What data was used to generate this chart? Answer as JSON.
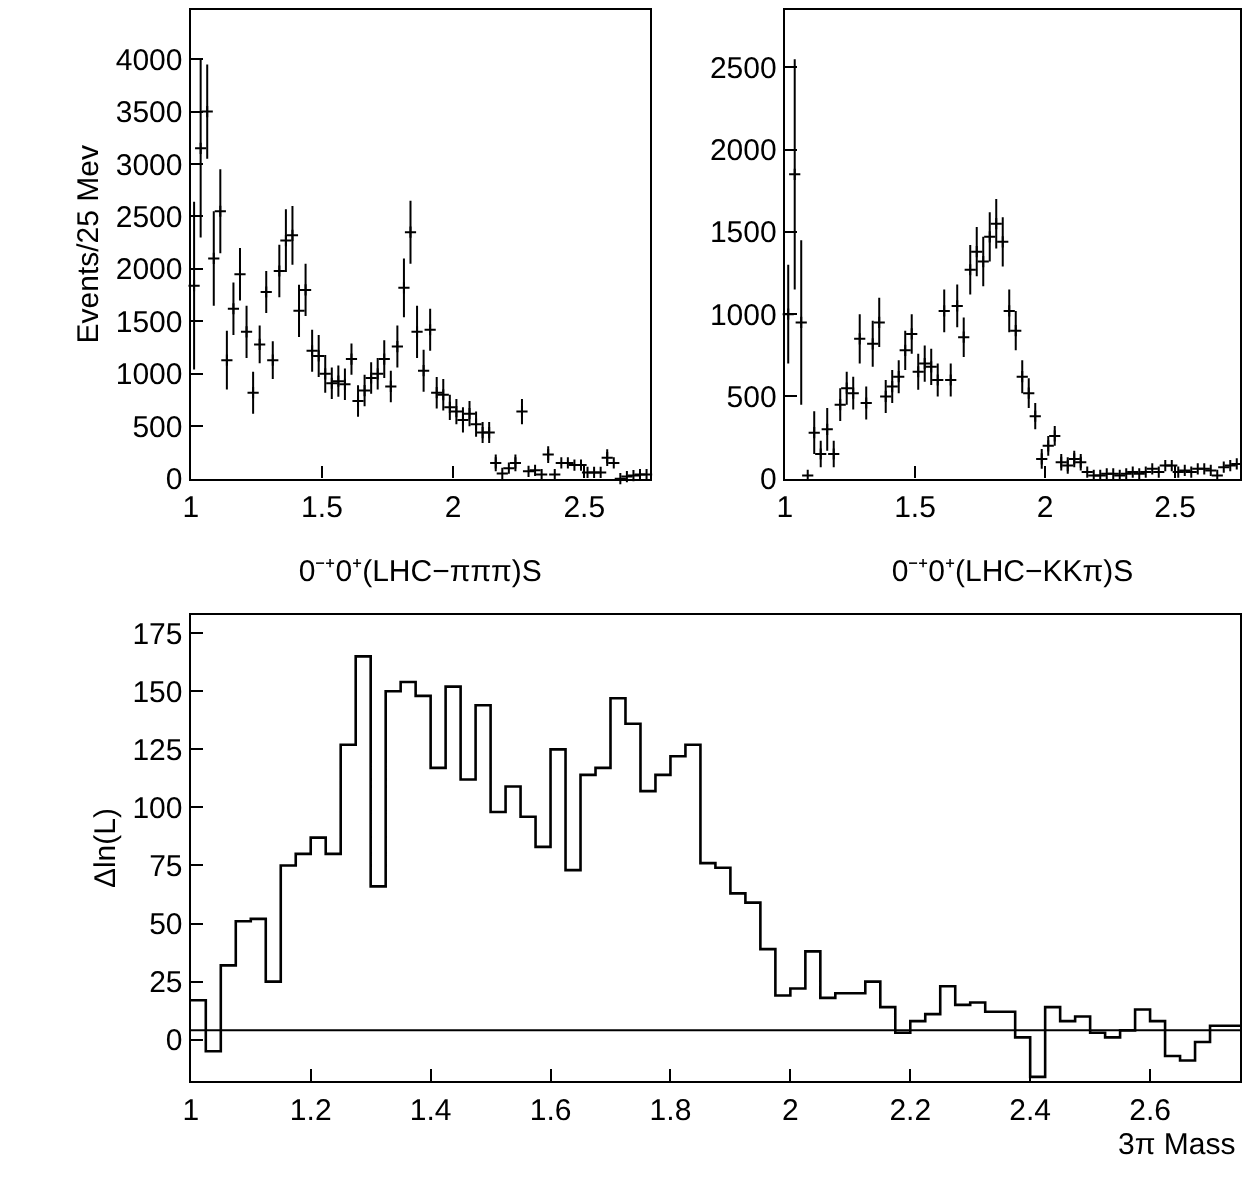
{
  "chart_data": [
    {
      "type": "scatter",
      "ylabel": "Events/25 Mev",
      "xlabel": "0⁻⁺0⁺(LHC−πππ)S",
      "marker": "cross",
      "x": [
        1.0125,
        1.0375,
        1.0625,
        1.0875,
        1.1125,
        1.1375,
        1.1625,
        1.1875,
        1.2125,
        1.2375,
        1.2625,
        1.2875,
        1.3125,
        1.3375,
        1.3625,
        1.3875,
        1.4125,
        1.4375,
        1.4625,
        1.4875,
        1.5125,
        1.5375,
        1.5625,
        1.5875,
        1.6125,
        1.6375,
        1.6625,
        1.6875,
        1.7125,
        1.7375,
        1.7625,
        1.7875,
        1.8125,
        1.8375,
        1.8625,
        1.8875,
        1.9125,
        1.9375,
        1.9625,
        1.9875,
        2.0125,
        2.0375,
        2.0625,
        2.0875,
        2.1125,
        2.1375,
        2.1625,
        2.1875,
        2.2125,
        2.2375,
        2.2625,
        2.2875,
        2.3125,
        2.3375,
        2.3625,
        2.3875,
        2.4125,
        2.4375,
        2.4625,
        2.4875,
        2.5125,
        2.5375,
        2.5625,
        2.5875,
        2.6125,
        2.6375,
        2.6625,
        2.6875,
        2.7125,
        2.7375
      ],
      "series": [
        {
          "color": "#000000",
          "values": [
            1840,
            3150,
            3500,
            2100,
            2550,
            1130,
            1620,
            1950,
            1400,
            820,
            1280,
            1780,
            1130,
            1980,
            2270,
            2320,
            1600,
            1800,
            1220,
            1170,
            1000,
            910,
            930,
            900,
            1140,
            740,
            840,
            960,
            1000,
            1140,
            880,
            1260,
            1820,
            2350,
            1400,
            1030,
            1420,
            820,
            800,
            680,
            640,
            560,
            620,
            520,
            440,
            440,
            150,
            50,
            100,
            150,
            640,
            70,
            80,
            40,
            230,
            40,
            150,
            150,
            130,
            130,
            60,
            60,
            60,
            200,
            150,
            0,
            20,
            30,
            40,
            40
          ],
          "errors": [
            800,
            850,
            450,
            450,
            400,
            280,
            250,
            250,
            250,
            200,
            180,
            200,
            180,
            250,
            300,
            280,
            250,
            250,
            200,
            200,
            180,
            150,
            150,
            150,
            150,
            150,
            150,
            150,
            150,
            180,
            150,
            200,
            280,
            300,
            250,
            200,
            200,
            150,
            150,
            120,
            120,
            120,
            120,
            120,
            100,
            100,
            80,
            null,
            null,
            80,
            120,
            null,
            null,
            null,
            80,
            null,
            null,
            null,
            null,
            null,
            null,
            null,
            null,
            80,
            null,
            null,
            null,
            null,
            null,
            null
          ]
        }
      ],
      "xlim": [
        1,
        2.75
      ],
      "xticks": [
        1,
        1.5,
        2,
        2.5
      ],
      "ylim": [
        0,
        4470
      ],
      "yticks": [
        0,
        500,
        1000,
        1500,
        2000,
        2500,
        3000,
        3500,
        4000
      ]
    },
    {
      "type": "scatter",
      "xlabel": "0⁻⁺0⁺(LHC−KKπ)S",
      "marker": "cross",
      "x": [
        1.0125,
        1.0375,
        1.0625,
        1.0875,
        1.1125,
        1.1375,
        1.1625,
        1.1875,
        1.2125,
        1.2375,
        1.2625,
        1.2875,
        1.3125,
        1.3375,
        1.3625,
        1.3875,
        1.4125,
        1.4375,
        1.4625,
        1.4875,
        1.5125,
        1.5375,
        1.5625,
        1.5875,
        1.6125,
        1.6375,
        1.6625,
        1.6875,
        1.7125,
        1.7375,
        1.7625,
        1.7875,
        1.8125,
        1.8375,
        1.8625,
        1.8875,
        1.9125,
        1.9375,
        1.9625,
        1.9875,
        2.0125,
        2.0375,
        2.0625,
        2.0875,
        2.1125,
        2.1375,
        2.1625,
        2.1875,
        2.2125,
        2.2375,
        2.2625,
        2.2875,
        2.3125,
        2.3375,
        2.3625,
        2.3875,
        2.4125,
        2.4375,
        2.4625,
        2.4875,
        2.5125,
        2.5375,
        2.5625,
        2.5875,
        2.6125,
        2.6375,
        2.6625,
        2.6875,
        2.7125,
        2.7375
      ],
      "series": [
        {
          "color": "#000000",
          "values": [
            1000,
            1850,
            950,
            20,
            280,
            150,
            300,
            150,
            450,
            550,
            520,
            850,
            460,
            820,
            950,
            500,
            560,
            620,
            780,
            880,
            650,
            700,
            680,
            600,
            1020,
            600,
            1050,
            860,
            1270,
            1380,
            1320,
            1470,
            1550,
            1440,
            1020,
            900,
            620,
            520,
            380,
            120,
            200,
            260,
            100,
            80,
            120,
            100,
            40,
            20,
            20,
            30,
            30,
            20,
            30,
            40,
            30,
            40,
            60,
            40,
            80,
            80,
            40,
            50,
            40,
            60,
            60,
            50,
            20,
            70,
            80,
            90
          ],
          "errors": [
            300,
            700,
            500,
            null,
            130,
            80,
            130,
            80,
            100,
            100,
            100,
            150,
            100,
            140,
            150,
            100,
            100,
            100,
            120,
            120,
            110,
            110,
            110,
            100,
            130,
            100,
            130,
            120,
            150,
            150,
            150,
            150,
            150,
            150,
            130,
            120,
            100,
            90,
            80,
            60,
            60,
            60,
            50,
            50,
            50,
            50,
            null,
            null,
            null,
            null,
            null,
            null,
            null,
            null,
            null,
            null,
            null,
            null,
            null,
            null,
            null,
            null,
            null,
            null,
            null,
            null,
            null,
            null,
            null,
            null
          ]
        }
      ],
      "xlim": [
        1,
        2.75
      ],
      "xticks": [
        1,
        1.5,
        2,
        2.5
      ],
      "ylim": [
        0,
        2850
      ],
      "yticks": [
        0,
        500,
        1000,
        1500,
        2000,
        2500
      ]
    },
    {
      "type": "histogram",
      "ylabel": "Δln(L)",
      "xlabel": "3π Mass",
      "color": "#000000",
      "bins": [
        1,
        1.025,
        1.05,
        1.075,
        1.1,
        1.125,
        1.15,
        1.175,
        1.2,
        1.225,
        1.25,
        1.275,
        1.3,
        1.325,
        1.35,
        1.375,
        1.4,
        1.425,
        1.45,
        1.475,
        1.5,
        1.525,
        1.55,
        1.575,
        1.6,
        1.625,
        1.65,
        1.675,
        1.7,
        1.725,
        1.75,
        1.775,
        1.8,
        1.825,
        1.85,
        1.875,
        1.9,
        1.925,
        1.95,
        1.975,
        2,
        2.025,
        2.05,
        2.075,
        2.1,
        2.125,
        2.15,
        2.175,
        2.2,
        2.225,
        2.25,
        2.275,
        2.3,
        2.325,
        2.35,
        2.375,
        2.4,
        2.425,
        2.45,
        2.475,
        2.5,
        2.525,
        2.55,
        2.575,
        2.6,
        2.625,
        2.65,
        2.675,
        2.7,
        2.725,
        2.75
      ],
      "values": [
        17,
        -5,
        32,
        51,
        52,
        25,
        75,
        80,
        87,
        80,
        127,
        165,
        66,
        150,
        154,
        148,
        117,
        152,
        112,
        144,
        98,
        109,
        96,
        83,
        125,
        73,
        114,
        117,
        147,
        136,
        107,
        114,
        122,
        127,
        76,
        74,
        63,
        59,
        39,
        19,
        22,
        38,
        18,
        20,
        20,
        25,
        14,
        3,
        8,
        11,
        23,
        15,
        16,
        12,
        12,
        1,
        -16,
        14,
        8,
        10,
        3,
        1,
        4,
        13,
        8,
        -7,
        -9,
        -1,
        6,
        6
      ],
      "ref_lines": [
        {
          "axis": "y",
          "value": 4,
          "color": "#000000"
        }
      ],
      "xlim": [
        1,
        2.75
      ],
      "xticks": [
        1,
        1.2,
        1.4,
        1.6,
        1.8,
        2,
        2.2,
        2.4,
        2.6
      ],
      "ylim": [
        -18,
        183
      ],
      "yticks": [
        0,
        25,
        50,
        75,
        100,
        125,
        150,
        175
      ]
    }
  ]
}
